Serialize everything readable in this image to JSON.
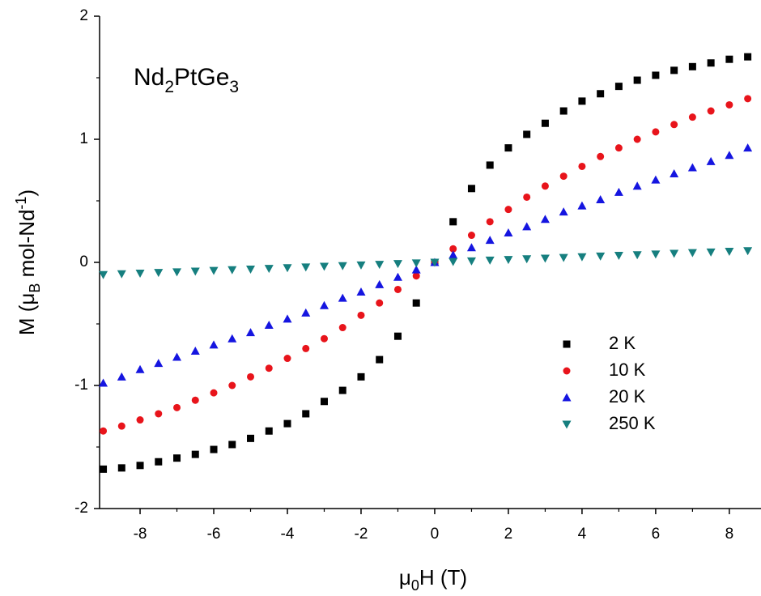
{
  "chart_data": {
    "type": "scatter",
    "annotation": [
      "Nd",
      "2",
      "PtGe",
      "3"
    ],
    "xlabel": [
      "μ",
      "0",
      "H (T)"
    ],
    "ylabel": [
      "M (μ",
      "B",
      " mol-Nd",
      "-1",
      ")"
    ],
    "x": [
      -9,
      -8.5,
      -8,
      -7.5,
      -7,
      -6.5,
      -6,
      -5.5,
      -5,
      -4.5,
      -4,
      -3.5,
      -3,
      -2.5,
      -2,
      -1.5,
      -1,
      -0.5,
      0,
      0.5,
      1,
      1.5,
      2,
      2.5,
      3,
      3.5,
      4,
      4.5,
      5,
      5.5,
      6,
      6.5,
      7,
      7.5,
      8,
      8.5
    ],
    "series": [
      {
        "name": "2 K",
        "color": "#000000",
        "marker": "square",
        "values": [
          -1.68,
          -1.67,
          -1.65,
          -1.62,
          -1.59,
          -1.56,
          -1.52,
          -1.48,
          -1.43,
          -1.37,
          -1.31,
          -1.23,
          -1.13,
          -1.04,
          -0.93,
          -0.79,
          -0.6,
          -0.33,
          0,
          0.33,
          0.6,
          0.79,
          0.93,
          1.04,
          1.13,
          1.23,
          1.31,
          1.37,
          1.43,
          1.48,
          1.52,
          1.56,
          1.59,
          1.62,
          1.65,
          1.67
        ]
      },
      {
        "name": "10 K",
        "color": "#e8141b",
        "marker": "circle",
        "values": [
          -1.37,
          -1.33,
          -1.28,
          -1.23,
          -1.18,
          -1.12,
          -1.06,
          -1.0,
          -0.93,
          -0.86,
          -0.78,
          -0.7,
          -0.62,
          -0.53,
          -0.43,
          -0.33,
          -0.22,
          -0.11,
          0,
          0.11,
          0.22,
          0.33,
          0.43,
          0.53,
          0.62,
          0.7,
          0.78,
          0.86,
          0.93,
          1.0,
          1.06,
          1.12,
          1.18,
          1.23,
          1.28,
          1.33
        ]
      },
      {
        "name": "20 K",
        "color": "#1515e0",
        "marker": "triangle-up",
        "values": [
          -0.98,
          -0.93,
          -0.87,
          -0.82,
          -0.77,
          -0.72,
          -0.67,
          -0.62,
          -0.57,
          -0.51,
          -0.46,
          -0.41,
          -0.35,
          -0.29,
          -0.24,
          -0.18,
          -0.12,
          -0.06,
          0,
          0.06,
          0.12,
          0.18,
          0.24,
          0.29,
          0.35,
          0.41,
          0.46,
          0.51,
          0.57,
          0.62,
          0.67,
          0.72,
          0.77,
          0.82,
          0.87,
          0.93
        ]
      },
      {
        "name": "250 K",
        "color": "#167f7f",
        "marker": "triangle-down",
        "values": [
          -0.1,
          -0.094,
          -0.089,
          -0.083,
          -0.078,
          -0.072,
          -0.067,
          -0.061,
          -0.056,
          -0.05,
          -0.044,
          -0.039,
          -0.033,
          -0.028,
          -0.022,
          -0.017,
          -0.011,
          -0.006,
          0,
          0.006,
          0.011,
          0.017,
          0.022,
          0.028,
          0.033,
          0.039,
          0.044,
          0.05,
          0.056,
          0.061,
          0.067,
          0.072,
          0.078,
          0.083,
          0.089,
          0.094
        ]
      }
    ],
    "xlim": [
      -9.1,
      8.86
    ],
    "xticks": [
      -8,
      -6,
      -4,
      -2,
      0,
      2,
      4,
      6,
      8
    ],
    "ylim": [
      -2,
      2
    ],
    "yticks": [
      -2,
      -1,
      0,
      1,
      2
    ],
    "legend": "lower right"
  }
}
